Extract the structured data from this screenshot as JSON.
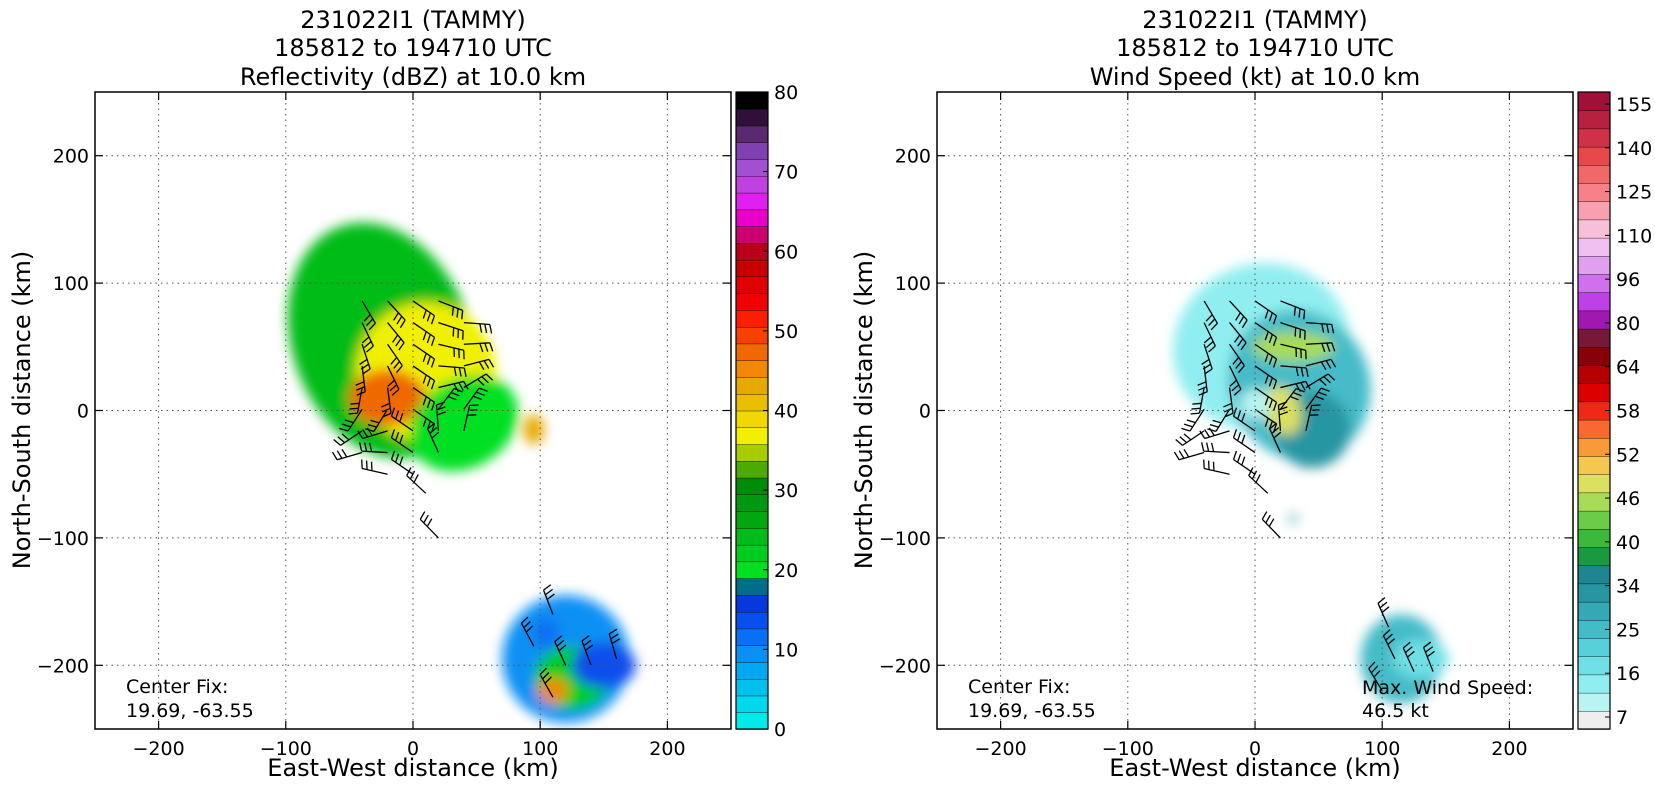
{
  "panels": [
    {
      "title_lines": [
        "231022I1 (TAMMY)",
        "185812 to 194710 UTC",
        "Reflectivity (dBZ) at 10.0 km"
      ],
      "corner_text": [
        "Center Fix:",
        "19.69, -63.55"
      ]
    },
    {
      "title_lines": [
        "231022I1 (TAMMY)",
        "185812 to 194710 UTC",
        "Wind Speed (kt) at 10.0 km"
      ],
      "corner_text": [
        "Center Fix:",
        "19.69, -63.55"
      ],
      "corner_text_right": [
        "Max. Wind Speed:",
        "46.5 kt"
      ]
    }
  ],
  "chart_data": [
    {
      "type": "heatmap",
      "title": "231022I1 (TAMMY) 185812 to 194710 UTC Reflectivity (dBZ) at 10.0 km",
      "xlabel": "East-West distance (km)",
      "ylabel": "North-South distance (km)",
      "xlim": [
        -250,
        250
      ],
      "ylim": [
        -250,
        250
      ],
      "xticks": [
        "−200",
        "−100",
        "0",
        "100",
        "200"
      ],
      "yticks": [
        "−200",
        "−100",
        "0",
        "100",
        "200"
      ],
      "xtick_values": [
        -200,
        -100,
        0,
        100,
        200
      ],
      "ytick_values": [
        -200,
        -100,
        0,
        100,
        200
      ],
      "grid": true,
      "colorbar": {
        "levels": 32,
        "range": [
          0,
          80
        ],
        "tick_labels": [
          "0",
          "10",
          "20",
          "30",
          "40",
          "50",
          "60",
          "70",
          "80"
        ],
        "tick_values": [
          0,
          10,
          20,
          30,
          40,
          50,
          60,
          70,
          80
        ],
        "colors": [
          "#00eaea",
          "#00d8ec",
          "#00c0ee",
          "#00a8f0",
          "#0890f4",
          "#0870f4",
          "#0850ec",
          "#0838dc",
          "#006e88",
          "#00e020",
          "#00cc20",
          "#00bc18",
          "#00a810",
          "#009810",
          "#008c08",
          "#4caa00",
          "#a8cc00",
          "#f0f000",
          "#f0d800",
          "#e8c000",
          "#e8a800",
          "#f08800",
          "#f06800",
          "#f84000",
          "#f82000",
          "#f00000",
          "#e00000",
          "#c80000",
          "#b80018",
          "#cc0070",
          "#e800c8",
          "#e020f0",
          "#c040e0",
          "#a050d0",
          "#8040b0",
          "#5a2a70",
          "#301038",
          "#000000"
        ]
      },
      "annotation": "Center Fix: 19.69, -63.55",
      "blobs": [
        {
          "cx": -25,
          "cy": 55,
          "rx": 70,
          "ry": 95,
          "rot": -20,
          "value": 11
        },
        {
          "cx": 10,
          "cy": 30,
          "rx": 55,
          "ry": 55,
          "rot": 0,
          "value": 17
        },
        {
          "cx": -20,
          "cy": 10,
          "rx": 30,
          "ry": 22,
          "rot": 0,
          "value": 22
        },
        {
          "cx": 40,
          "cy": -10,
          "rx": 45,
          "ry": 35,
          "rot": -30,
          "value": 9
        },
        {
          "cx": 95,
          "cy": -15,
          "rx": 8,
          "ry": 12,
          "rot": 0,
          "value": 20
        },
        {
          "cx": 120,
          "cy": -195,
          "rx": 50,
          "ry": 50,
          "rot": 0,
          "value": 4
        },
        {
          "cx": 125,
          "cy": -210,
          "rx": 30,
          "ry": 25,
          "rot": 0,
          "value": 10
        },
        {
          "cx": 110,
          "cy": -220,
          "rx": 12,
          "ry": 10,
          "rot": 0,
          "value": 21
        },
        {
          "cx": 105,
          "cy": -175,
          "rx": 10,
          "ry": 12,
          "rot": 0,
          "value": 5
        },
        {
          "cx": 150,
          "cy": -200,
          "rx": 25,
          "ry": 18,
          "rot": 0,
          "value": 6
        }
      ]
    },
    {
      "type": "heatmap",
      "title": "231022I1 (TAMMY) 185812 to 194710 UTC Wind Speed (kt) at 10.0 km",
      "xlabel": "East-West distance (km)",
      "ylabel": "North-South distance (km)",
      "xlim": [
        -250,
        250
      ],
      "ylim": [
        -250,
        250
      ],
      "xticks": [
        "−200",
        "−100",
        "0",
        "100",
        "200"
      ],
      "yticks": [
        "−200",
        "−100",
        "0",
        "100",
        "200"
      ],
      "xtick_values": [
        -200,
        -100,
        0,
        100,
        200
      ],
      "ytick_values": [
        -200,
        -100,
        0,
        100,
        200
      ],
      "grid": true,
      "colorbar": {
        "levels": 30,
        "tick_labels": [
          "7",
          "16",
          "25",
          "34",
          "40",
          "46",
          "52",
          "58",
          "64",
          "80",
          "96",
          "110",
          "125",
          "140",
          "155"
        ],
        "colors": [
          "#eeeeee",
          "#b8f4f4",
          "#90eef0",
          "#70e0e6",
          "#58d0da",
          "#44bcc8",
          "#34a8b4",
          "#2896a2",
          "#1e8690",
          "#1a9a40",
          "#3cb83c",
          "#6ccc48",
          "#a8dc58",
          "#dce060",
          "#f4c850",
          "#f89a38",
          "#f86830",
          "#f02818",
          "#dc0000",
          "#b40000",
          "#880008",
          "#781838",
          "#a018b0",
          "#c040e8",
          "#d070ec",
          "#e0a0f0",
          "#f0c0f0",
          "#f8c0d8",
          "#f8a0b0",
          "#f88088",
          "#f06868",
          "#e84848",
          "#d03048",
          "#b82040",
          "#a01038"
        ]
      },
      "annotation": "Center Fix: 19.69, -63.55",
      "annotation_right": "Max. Wind Speed: 46.5 kt",
      "max_wind_speed_kt": 46.5,
      "blobs": [
        {
          "cx": 5,
          "cy": 50,
          "rx": 70,
          "ry": 65,
          "rot": -20,
          "value": 2
        },
        {
          "cx": 35,
          "cy": 20,
          "rx": 55,
          "ry": 60,
          "rot": -25,
          "value": 5
        },
        {
          "cx": 45,
          "cy": -15,
          "rx": 30,
          "ry": 30,
          "rot": 0,
          "value": 7
        },
        {
          "cx": 30,
          "cy": 50,
          "rx": 32,
          "ry": 12,
          "rot": 0,
          "value": 12
        },
        {
          "cx": 22,
          "cy": 0,
          "rx": 14,
          "ry": 20,
          "rot": -20,
          "value": 13
        },
        {
          "cx": 0,
          "cy": 5,
          "rx": 12,
          "ry": 12,
          "rot": 0,
          "value": 1
        },
        {
          "cx": 115,
          "cy": -195,
          "rx": 32,
          "ry": 35,
          "rot": 0,
          "value": 5
        },
        {
          "cx": 130,
          "cy": -195,
          "rx": 22,
          "ry": 15,
          "rot": 0,
          "value": 3
        },
        {
          "cx": 30,
          "cy": -85,
          "rx": 3,
          "ry": 3,
          "rot": 0,
          "value": 7
        }
      ]
    }
  ]
}
